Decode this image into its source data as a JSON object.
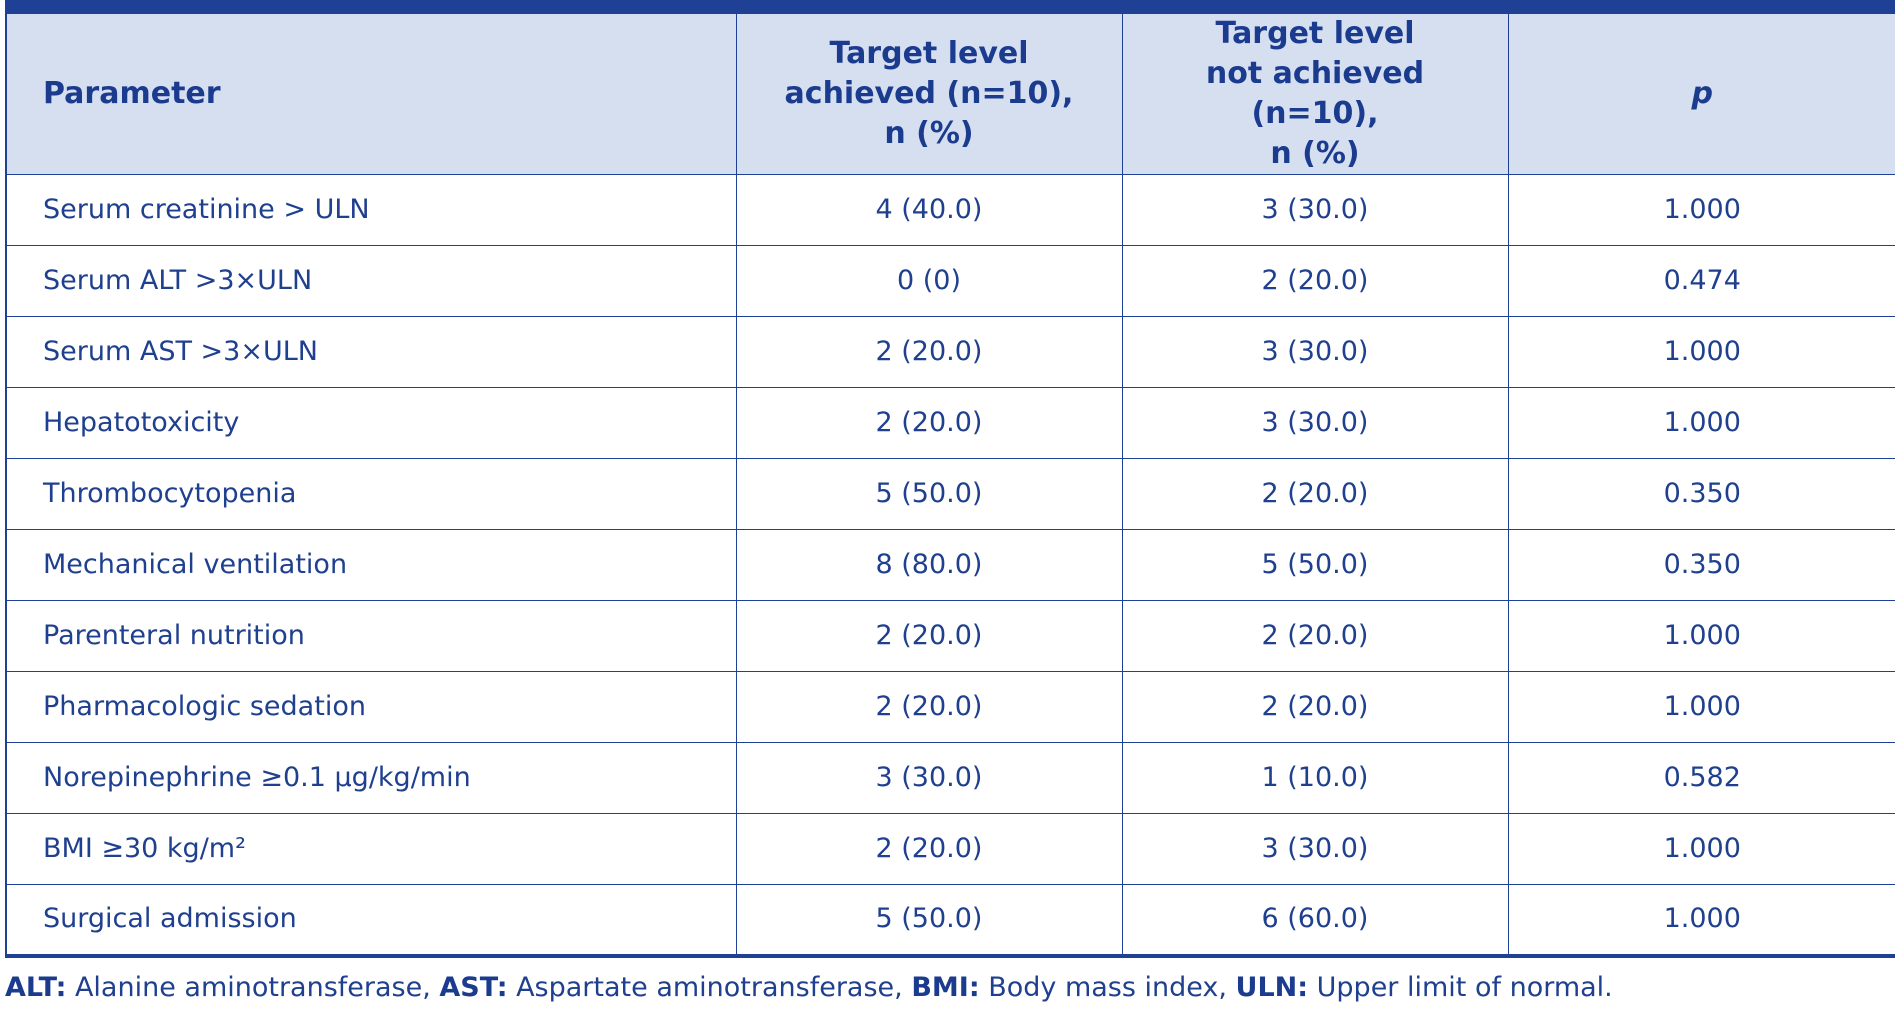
{
  "table": {
    "headers": [
      "Parameter",
      "Target level achieved (n=10), n (%)",
      "Target level not achieved (n=10), n (%)",
      "p"
    ],
    "header_lines": {
      "col2": [
        "Target level",
        "achieved (n=10),",
        "n (%)"
      ],
      "col3": [
        "Target level",
        "not achieved (n=10),",
        "n (%)"
      ]
    },
    "rows": [
      [
        "Serum creatinine > ULN",
        "4 (40.0)",
        "3 (30.0)",
        "1.000"
      ],
      [
        "Serum ALT >3×ULN",
        "0 (0)",
        "2 (20.0)",
        "0.474"
      ],
      [
        "Serum AST >3×ULN",
        "2 (20.0)",
        "3 (30.0)",
        "1.000"
      ],
      [
        "Hepatotoxicity",
        "2 (20.0)",
        "3 (30.0)",
        "1.000"
      ],
      [
        "Thrombocytopenia",
        "5 (50.0)",
        "2 (20.0)",
        "0.350"
      ],
      [
        "Mechanical ventilation",
        "8 (80.0)",
        "5 (50.0)",
        "0.350"
      ],
      [
        "Parenteral nutrition",
        "2 (20.0)",
        "2 (20.0)",
        "1.000"
      ],
      [
        "Pharmacologic sedation",
        "2 (20.0)",
        "2 (20.0)",
        "1.000"
      ],
      [
        "Norepinephrine ≥0.1 µg/kg/min",
        "3 (30.0)",
        "1 (10.0)",
        "0.582"
      ],
      [
        "BMI ≥30 kg/m²",
        "2 (20.0)",
        "3 (30.0)",
        "1.000"
      ],
      [
        "Surgical admission",
        "5 (50.0)",
        "6 (60.0)",
        "1.000"
      ]
    ]
  },
  "footnote": {
    "items": [
      {
        "abbr": "ALT:",
        "text": " Alanine aminotransferase, "
      },
      {
        "abbr": "AST:",
        "text": " Aspartate aminotransferase, "
      },
      {
        "abbr": "BMI:",
        "text": " Body mass index, "
      },
      {
        "abbr": "ULN:",
        "text": " Upper limit of normal."
      }
    ]
  },
  "colors": {
    "header_bg": "#d5dff0",
    "rule": "#1e4196",
    "text": "#1f3f8f"
  }
}
